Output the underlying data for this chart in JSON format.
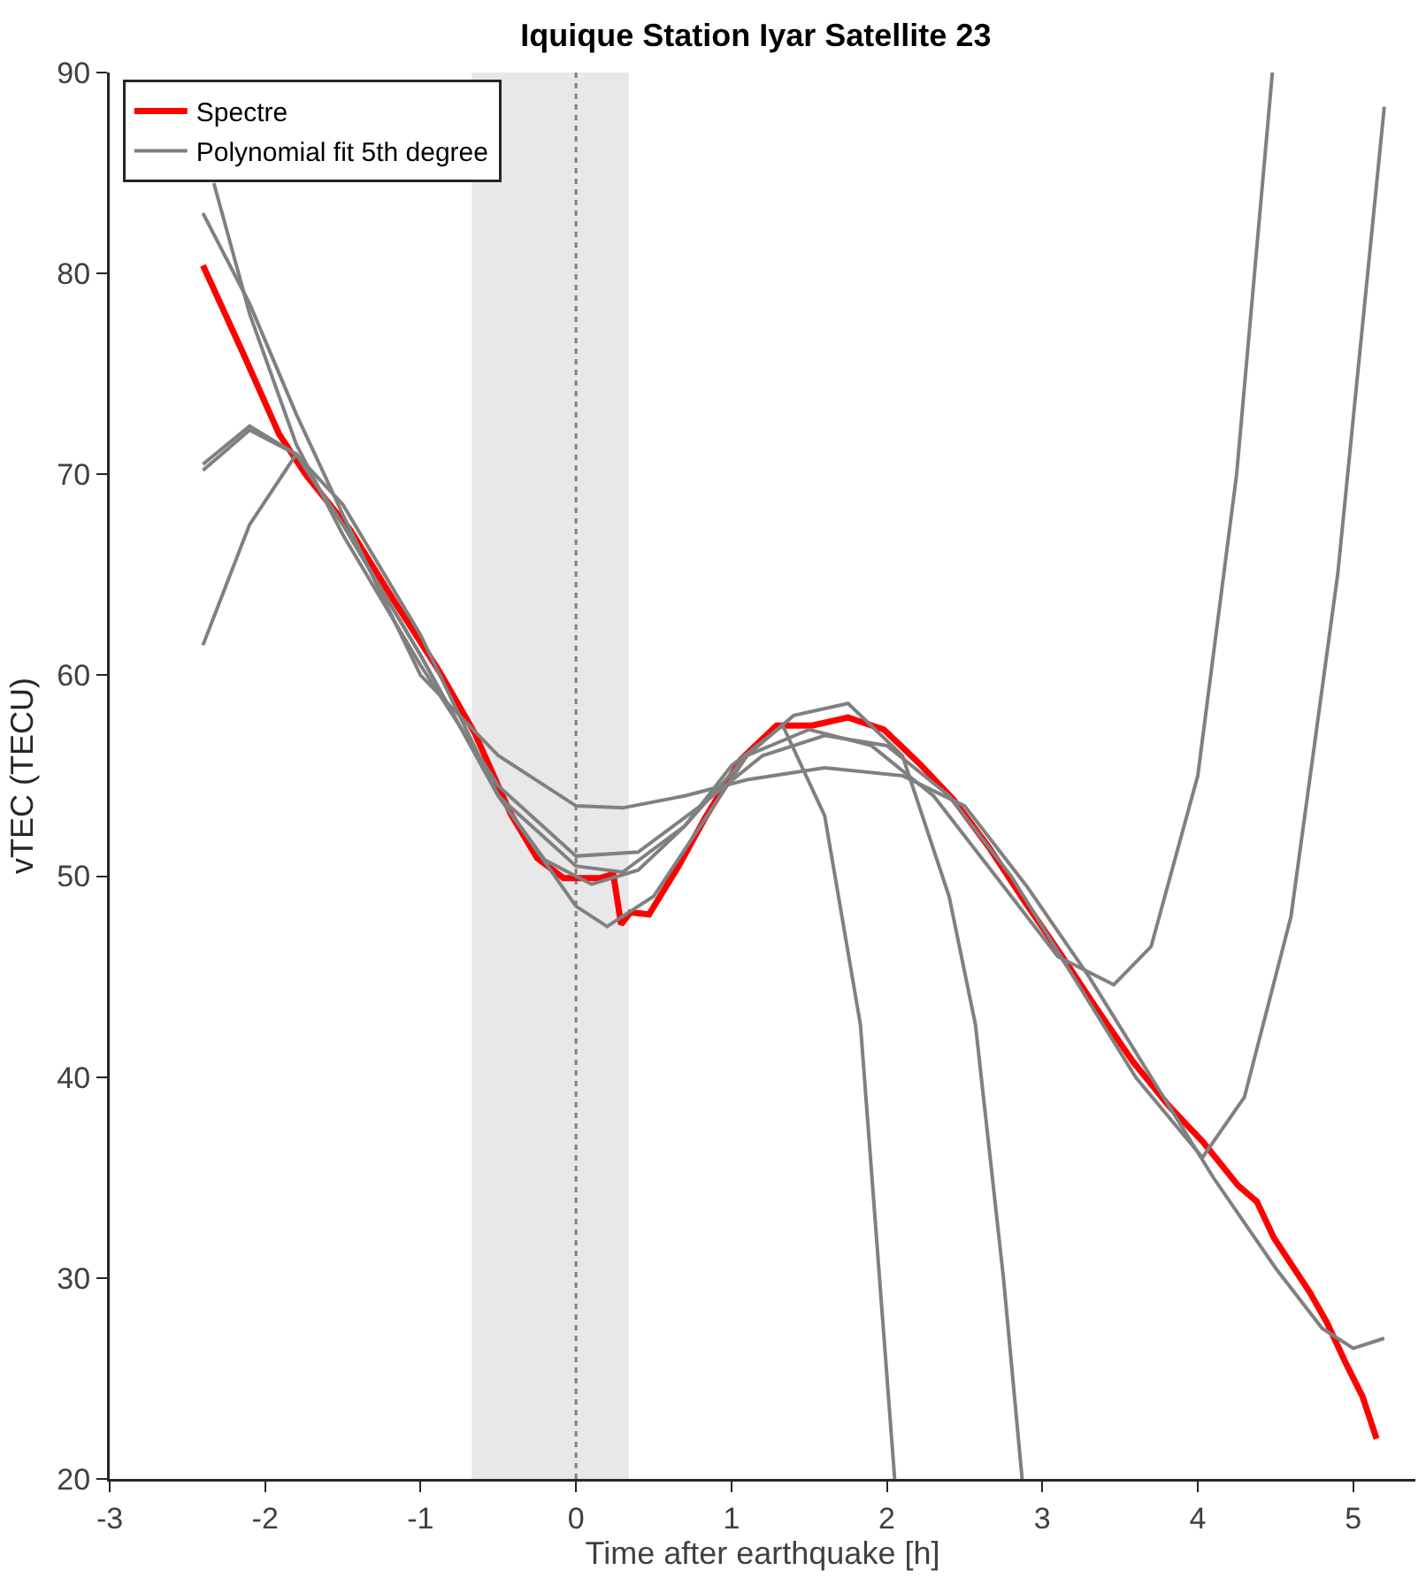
{
  "chart_data": {
    "type": "line",
    "title": "Iquique Station Iyar Satellite 23",
    "xlabel": "Time after earthquake [h]",
    "ylabel": "vTEC (TECU)",
    "xlim": [
      -3,
      5.4
    ],
    "xticks": [
      -3,
      -2,
      -1,
      0,
      1,
      2,
      3,
      4,
      5
    ],
    "ylim": [
      20,
      90
    ],
    "yticks": [
      20,
      30,
      40,
      50,
      60,
      70,
      80,
      90
    ],
    "grid": false,
    "legend": "top left",
    "marker": "none",
    "line_style": "solid",
    "ref_lines": [
      {
        "axis": "x",
        "value": 0,
        "color": "#808080",
        "line_style": "dotted"
      }
    ],
    "bands": [
      {
        "axis": "x",
        "from": -0.67,
        "to": 0.34,
        "color": "#e8e8e8"
      }
    ],
    "series": [
      {
        "name": "Spectre",
        "color": "#ff0000",
        "x": [
          -2.4,
          -2.14,
          -1.91,
          -1.74,
          -1.45,
          -1.17,
          -0.88,
          -0.65,
          -0.42,
          -0.25,
          -0.08,
          0.15,
          0.24,
          0.29,
          0.35,
          0.47,
          0.66,
          0.83,
          1.06,
          1.29,
          1.52,
          1.75,
          1.98,
          2.21,
          2.43,
          2.66,
          2.89,
          3.12,
          3.35,
          3.58,
          3.81,
          4.03,
          4.26,
          4.38,
          4.49,
          4.72,
          4.83,
          4.95,
          5.06,
          5.15
        ],
        "values": [
          80.4,
          76.0,
          72.0,
          70.0,
          67.2,
          63.7,
          60.2,
          57.1,
          53.1,
          50.9,
          49.9,
          49.9,
          50.1,
          47.6,
          48.2,
          48.1,
          50.5,
          52.9,
          55.8,
          57.5,
          57.5,
          57.9,
          57.3,
          55.6,
          53.8,
          51.4,
          48.7,
          46.1,
          43.4,
          40.8,
          38.6,
          36.8,
          34.6,
          33.8,
          32.0,
          29.3,
          27.8,
          25.8,
          24.1,
          22.0
        ]
      },
      {
        "name": "Polynomial fit 5th degree",
        "color": "#808080",
        "x": [
          -2.4,
          -2.1,
          -1.8,
          -1.5,
          -1.0,
          -0.5,
          -0.2,
          0.1,
          0.4,
          0.7,
          1.0,
          1.33,
          1.6,
          1.83,
          2.05
        ],
        "values": [
          70.5,
          72.4,
          71,
          67.5,
          61,
          54,
          50.8,
          49.6,
          50.3,
          52.5,
          55.5,
          57.5,
          53,
          42.6,
          20
        ]
      },
      {
        "color": "#808080",
        "x": [
          -2.4,
          -2.1,
          -1.8,
          -1.5,
          -1.0,
          -0.5,
          0,
          0.2,
          0.5,
          0.8,
          1.1,
          1.4,
          1.75,
          2.1,
          2.4,
          2.57,
          2.75,
          2.87
        ],
        "values": [
          61.5,
          67.5,
          71,
          68.5,
          62,
          54,
          48.5,
          47.5,
          49,
          52.5,
          56,
          58,
          58.6,
          56,
          49,
          42.6,
          30,
          20
        ]
      },
      {
        "color": "#808080",
        "x": [
          -2.4,
          -2.1,
          -1.8,
          -1.5,
          -1,
          -0.5,
          0,
          0.3,
          0.7,
          1.1,
          1.5,
          1.9,
          2.3,
          2.7,
          3.1,
          3.46,
          3.7,
          4.0,
          4.25,
          4.48
        ],
        "values": [
          70.2,
          72.2,
          71,
          67.5,
          61,
          54,
          50.5,
          50.2,
          52.5,
          56,
          57.3,
          56.5,
          54,
          50,
          46,
          44.6,
          46.5,
          55,
          70,
          90
        ]
      },
      {
        "color": "#808080",
        "x": [
          -2.33,
          -2.1,
          -1.8,
          -1.5,
          -1,
          -0.5,
          0,
          0.4,
          0.8,
          1.2,
          1.6,
          2.0,
          2.4,
          2.8,
          3.2,
          3.6,
          4.03,
          4.3,
          4.6,
          4.9,
          5.2
        ],
        "values": [
          84.5,
          78,
          71.5,
          67,
          60.5,
          54.5,
          51,
          51.2,
          53.5,
          56,
          57,
          56.5,
          54,
          50,
          45,
          40,
          36,
          39,
          48,
          65,
          88.3
        ]
      },
      {
        "color": "#808080",
        "x": [
          -2.4,
          -2.1,
          -1.8,
          -1.5,
          -1,
          -0.5,
          0,
          0.3,
          0.7,
          1.1,
          1.6,
          2.1,
          2.5,
          2.9,
          3.3,
          3.7,
          4.1,
          4.5,
          4.8,
          5.0,
          5.2
        ],
        "values": [
          83,
          78.5,
          73,
          68,
          60,
          56,
          53.5,
          53.4,
          54,
          54.8,
          55.4,
          55,
          53.5,
          49.5,
          45,
          40,
          35,
          30.5,
          27.5,
          26.5,
          27
        ]
      }
    ]
  }
}
